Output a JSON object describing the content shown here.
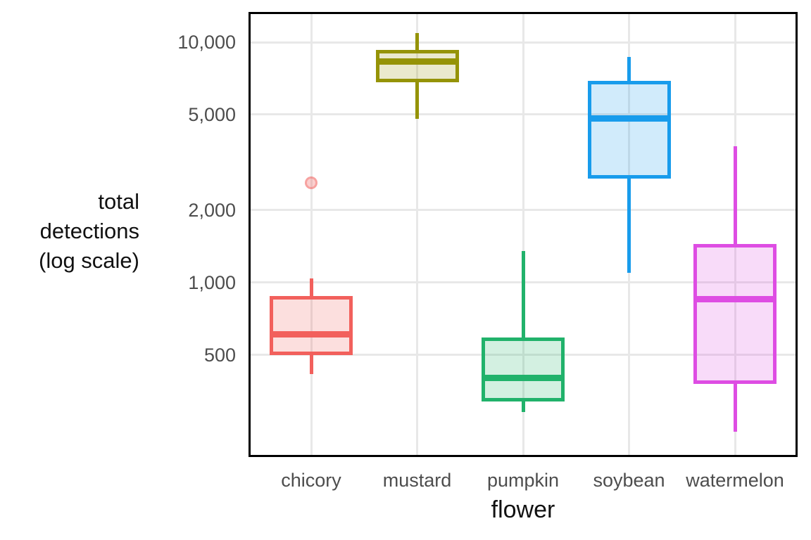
{
  "chart_data": {
    "type": "boxplot",
    "title": "",
    "xlabel": "flower",
    "ylabel": "total detections (log scale)",
    "ylabel_lines": [
      "total",
      "detections",
      "(log scale)"
    ],
    "yscale": "log",
    "ylim": [
      188,
      13360
    ],
    "grid": true,
    "legend": "none",
    "yticks": [
      {
        "value": 10000,
        "label": "10,000"
      },
      {
        "value": 5000,
        "label": "5,000"
      },
      {
        "value": 2000,
        "label": "2,000"
      },
      {
        "value": 1000,
        "label": "1,000"
      },
      {
        "value": 500,
        "label": "500"
      }
    ],
    "categories": [
      "chicory",
      "mustard",
      "pumpkin",
      "soybean",
      "watermelon"
    ],
    "series": [
      {
        "category": "chicory",
        "color": "#F2605C",
        "whisker_low": 415,
        "q1": 500,
        "median": 610,
        "q3": 880,
        "whisker_high": 1040,
        "outliers": [
          2600
        ]
      },
      {
        "category": "mustard",
        "color": "#959307",
        "whisker_low": 4800,
        "q1": 6800,
        "median": 8300,
        "q3": 9300,
        "whisker_high": 10900,
        "outliers": []
      },
      {
        "category": "pumpkin",
        "color": "#21B26B",
        "whisker_low": 290,
        "q1": 320,
        "median": 400,
        "q3": 590,
        "whisker_high": 1350,
        "outliers": []
      },
      {
        "category": "soybean",
        "color": "#189CEC",
        "whisker_low": 1100,
        "q1": 2700,
        "median": 4800,
        "q3": 6900,
        "whisker_high": 8700,
        "outliers": []
      },
      {
        "category": "watermelon",
        "color": "#DE4DE3",
        "whisker_low": 240,
        "q1": 380,
        "median": 850,
        "q3": 1450,
        "whisker_high": 3700,
        "outliers": []
      }
    ],
    "colors": {
      "gridline": "#E8E8E8",
      "plot_border": "#000000",
      "tick_text": "#4D4D4D",
      "axis_title_text": "#111111",
      "background": "#FFFFFF",
      "outlier": "#F2605C"
    }
  }
}
